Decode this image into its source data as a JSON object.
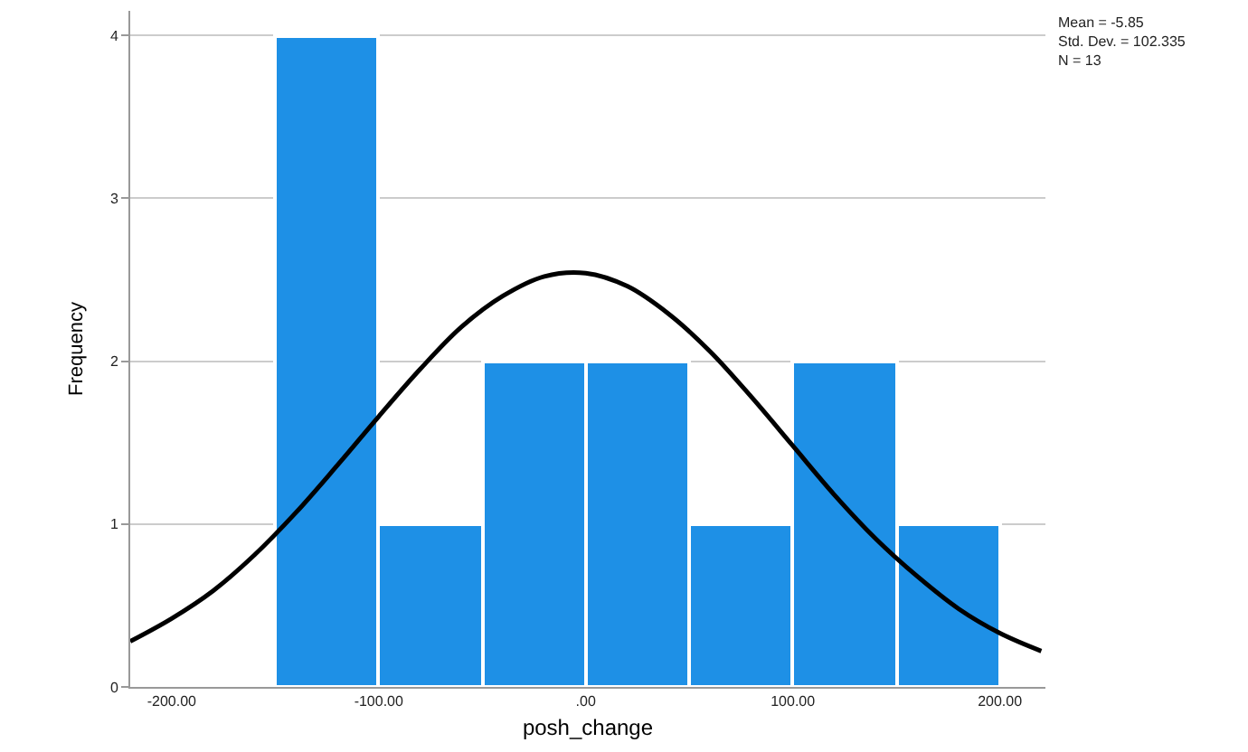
{
  "chart_data": {
    "type": "histogram",
    "xlabel": "posh_change",
    "ylabel": "Frequency",
    "bins": [
      -150,
      -100,
      -50,
      0,
      50,
      100,
      150,
      200
    ],
    "values": [
      4,
      1,
      2,
      2,
      1,
      2,
      1
    ],
    "color": "#1e90e6",
    "series": [
      {
        "type": "line",
        "color": "#000000",
        "x": [
          -220,
          -200,
          -180,
          -160,
          -140,
          -120,
          -100,
          -80,
          -60,
          -40,
          -20,
          0,
          20,
          40,
          60,
          80,
          100,
          120,
          140,
          160,
          180,
          200,
          220
        ],
        "values": [
          0.28,
          0.42,
          0.59,
          0.81,
          1.07,
          1.36,
          1.66,
          1.95,
          2.21,
          2.4,
          2.52,
          2.54,
          2.46,
          2.29,
          2.06,
          1.78,
          1.48,
          1.18,
          0.91,
          0.68,
          0.48,
          0.33,
          0.22
        ]
      }
    ],
    "xlim": [
      -220,
      222
    ],
    "xticks": [
      {
        "value": -200,
        "label": "-200.00"
      },
      {
        "value": -100,
        "label": "-100.00"
      },
      {
        "value": 0,
        "label": ".00"
      },
      {
        "value": 100,
        "label": "100.00"
      },
      {
        "value": 200,
        "label": "200.00"
      }
    ],
    "ylim": [
      0,
      4.15
    ],
    "yticks": [
      0,
      1,
      2,
      3,
      4
    ],
    "grid": "y",
    "annotations": [
      "Mean = -5.85",
      "Std. Dev. = 102.335",
      "N = 13"
    ]
  }
}
